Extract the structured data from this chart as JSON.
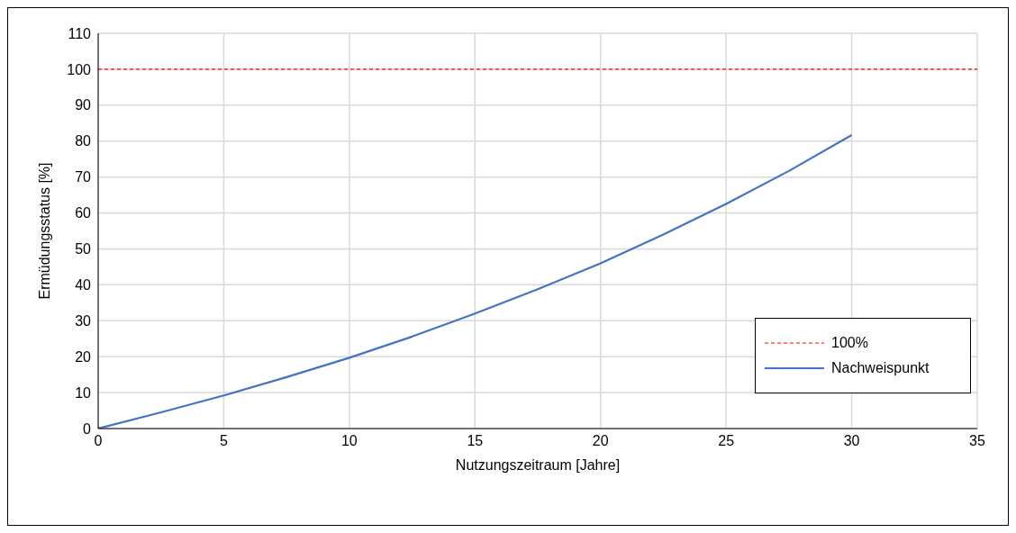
{
  "chart_data": {
    "type": "line",
    "xlabel": "Nutzungszeitraum [Jahre]",
    "ylabel": "Ermüdungsstatus [%]",
    "xlim": [
      0,
      35
    ],
    "xticks": [
      0,
      5,
      10,
      15,
      20,
      25,
      30,
      35
    ],
    "ylim": [
      0,
      110
    ],
    "yticks": [
      0,
      10,
      20,
      30,
      40,
      50,
      60,
      70,
      80,
      90,
      100,
      110
    ],
    "grid": true,
    "legend": "bottom right",
    "marker": "none",
    "series": [
      {
        "name": "100%",
        "color": "#ff0000",
        "line_style": "dashed",
        "x": [
          0,
          35
        ],
        "values": [
          100,
          100
        ]
      },
      {
        "name": "Nachweispunkt",
        "color": "#4472c4",
        "line_style": "solid",
        "x": [
          0,
          2.5,
          5,
          7.5,
          10,
          12.5,
          15,
          17.5,
          20,
          22.5,
          25,
          27.5,
          30
        ],
        "values": [
          0,
          4.5,
          9.2,
          14.3,
          19.7,
          25.6,
          32,
          38.8,
          46,
          54,
          62.5,
          71.7,
          81.7
        ]
      }
    ]
  }
}
